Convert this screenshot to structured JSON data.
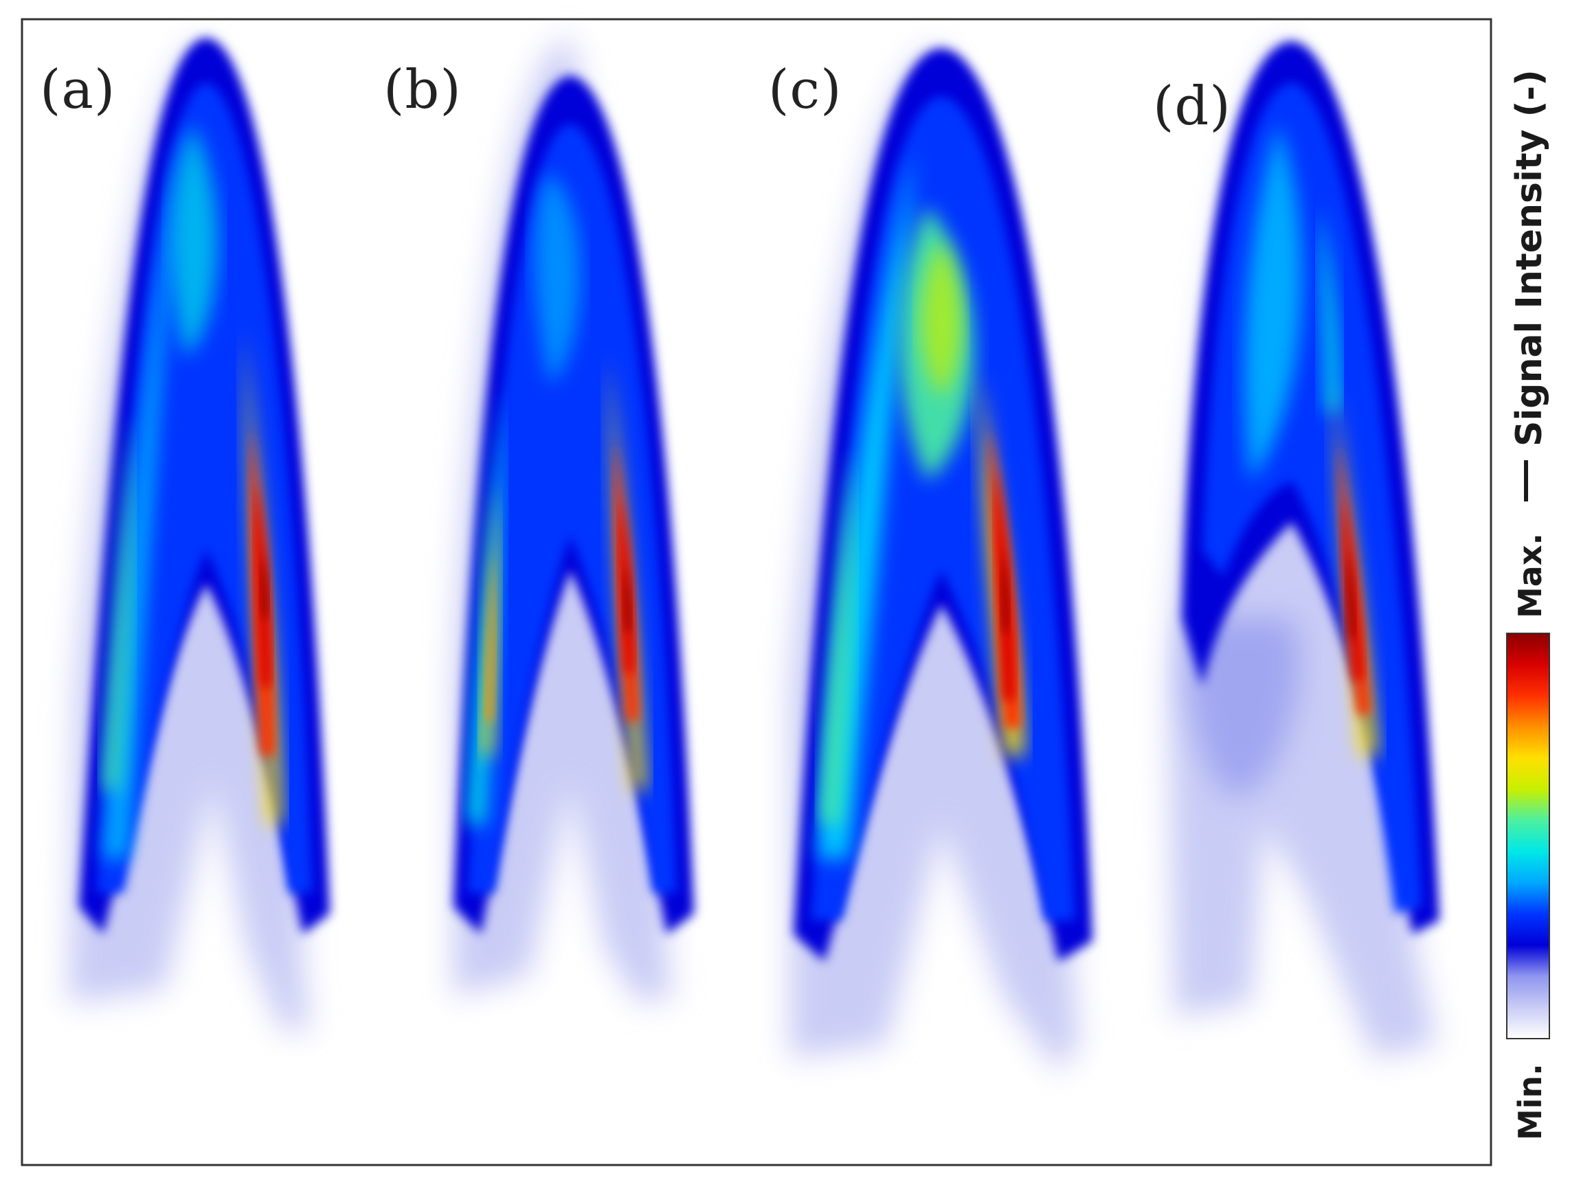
{
  "panels": [
    {
      "label": "(a)"
    },
    {
      "label": "(b)"
    },
    {
      "label": "(c)"
    },
    {
      "label": "(d)"
    }
  ],
  "colorbar": {
    "title": "Signal Intensity (-)",
    "max_label": "Max.",
    "min_label": "Min.",
    "colormap": [
      "#ffffff",
      "#c9ccf5",
      "#8f96ef",
      "#0000d8",
      "#0035ff",
      "#00a8ff",
      "#00e8e8",
      "#4cf0a0",
      "#c8f000",
      "#ffe000",
      "#ff9000",
      "#ff3000",
      "#d80000",
      "#8a0000"
    ]
  },
  "colors": {
    "frame": "#333333",
    "background": "#ffffff"
  }
}
